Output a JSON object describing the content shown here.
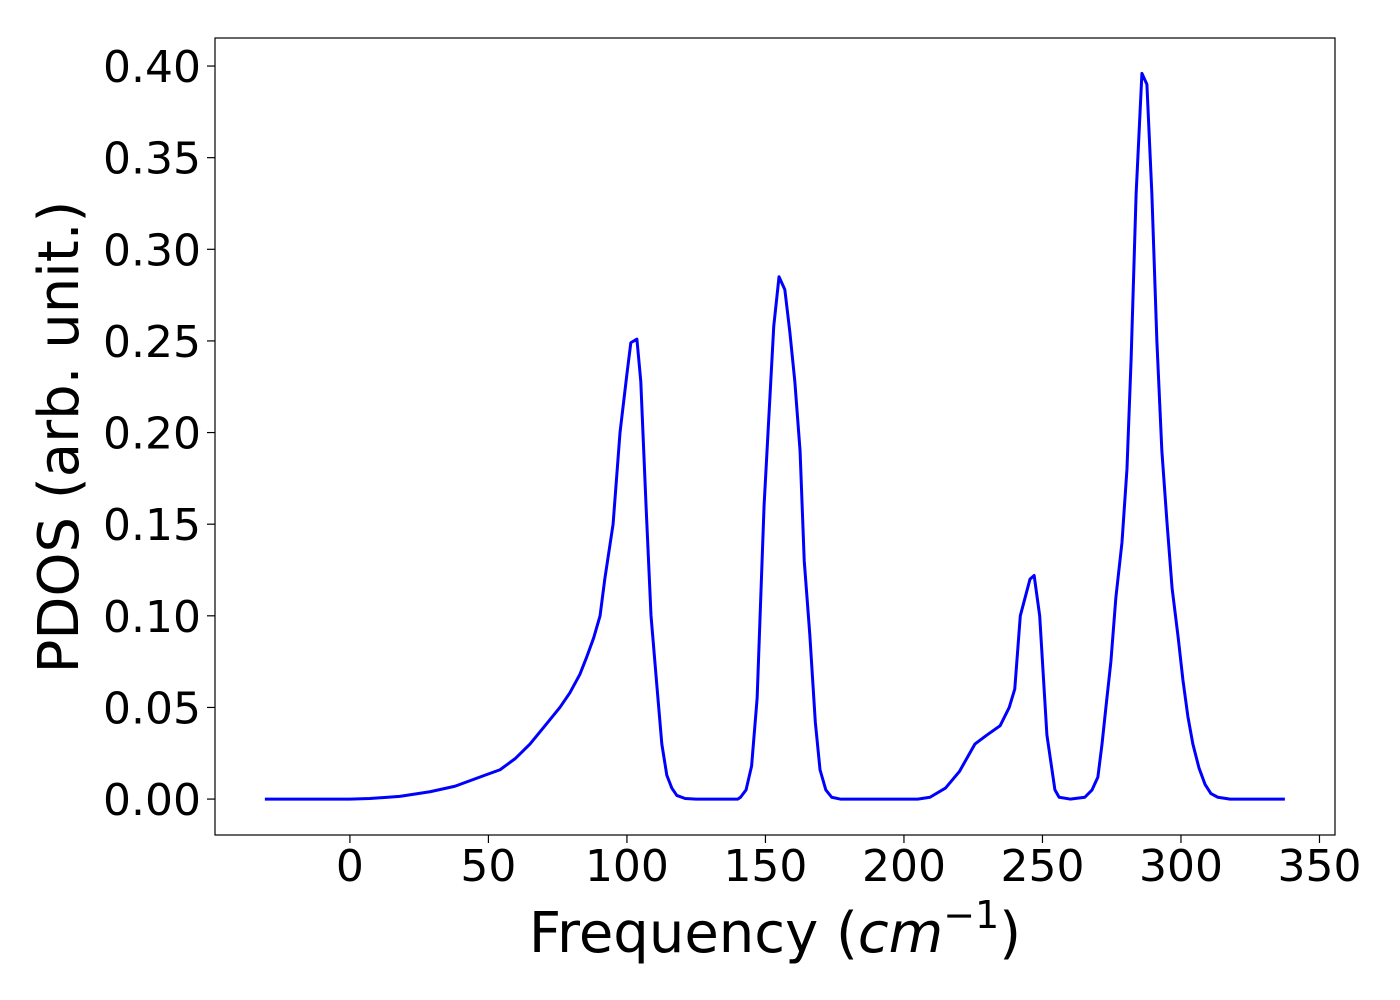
{
  "chart_data": {
    "type": "line",
    "xlabel": [
      "Frequency (",
      "cm",
      "−1",
      ")"
    ],
    "ylabel": "PDOS (arb. unit.)",
    "x": [
      -30.7,
      0,
      7.2,
      18,
      28.9,
      37.9,
      43.3,
      48.7,
      54.2,
      59.6,
      65,
      70.4,
      75.8,
      79.4,
      83,
      85.6,
      88,
      90.3,
      92,
      95,
      97.5,
      100,
      101.4,
      103.6,
      105,
      106.9,
      108.7,
      110.8,
      112.6,
      114.4,
      116.2,
      118,
      121,
      125,
      140,
      141,
      143,
      145,
      147,
      149.5,
      153,
      154.9,
      157,
      158.8,
      160.6,
      162.5,
      164,
      166,
      168,
      169.7,
      171.8,
      173.9,
      177,
      205,
      209.4,
      215,
      220,
      225.6,
      230,
      234.7,
      238,
      240,
      242,
      245.5,
      247,
      249,
      251.6,
      254.5,
      256,
      260,
      265.3,
      267.9,
      270,
      271.5,
      272.9,
      274.7,
      276.5,
      278.7,
      280.5,
      282,
      283.8,
      285.9,
      287.7,
      289.5,
      291.3,
      293.1,
      295,
      296.8,
      299,
      300.7,
      302.5,
      304.3,
      306.5,
      308.7,
      310.8,
      313.3,
      317.7,
      337.5
    ],
    "series": [
      {
        "color": "#0000ff",
        "values": [
          0,
          0,
          0.0003,
          0.0015,
          0.004,
          0.007,
          0.01,
          0.013,
          0.016,
          0.022,
          0.03,
          0.04,
          0.05,
          0.058,
          0.068,
          0.078,
          0.088,
          0.1,
          0.12,
          0.15,
          0.2,
          0.232,
          0.249,
          0.251,
          0.228,
          0.16,
          0.1,
          0.062,
          0.03,
          0.013,
          0.006,
          0.002,
          0.0003,
          0,
          0,
          0.001,
          0.005,
          0.018,
          0.055,
          0.16,
          0.258,
          0.285,
          0.278,
          0.255,
          0.228,
          0.19,
          0.13,
          0.09,
          0.042,
          0.016,
          0.005,
          0.001,
          0,
          0,
          0.001,
          0.006,
          0.015,
          0.03,
          0.035,
          0.04,
          0.05,
          0.06,
          0.1,
          0.12,
          0.122,
          0.1,
          0.035,
          0.005,
          0.001,
          0,
          0.001,
          0.005,
          0.012,
          0.03,
          0.05,
          0.075,
          0.11,
          0.14,
          0.18,
          0.24,
          0.33,
          0.396,
          0.39,
          0.33,
          0.25,
          0.19,
          0.15,
          0.115,
          0.088,
          0.065,
          0.045,
          0.03,
          0.017,
          0.008,
          0.003,
          0.001,
          0,
          0
        ]
      }
    ],
    "xlim": [
      -48.7,
      355.6
    ],
    "ylim": [
      -0.0196,
      0.4153
    ],
    "xticks": [
      0,
      50,
      100,
      150,
      200,
      250,
      300,
      350
    ],
    "yticks": [
      {
        "value": 0,
        "label": "0.00"
      },
      {
        "value": 0.05,
        "label": "0.05"
      },
      {
        "value": 0.1,
        "label": "0.10"
      },
      {
        "value": 0.15,
        "label": "0.15"
      },
      {
        "value": 0.2,
        "label": "0.20"
      },
      {
        "value": 0.25,
        "label": "0.25"
      },
      {
        "value": 0.3,
        "label": "0.30"
      },
      {
        "value": 0.35,
        "label": "0.35"
      },
      {
        "value": 0.4,
        "label": "0.40"
      }
    ],
    "grid": false
  }
}
